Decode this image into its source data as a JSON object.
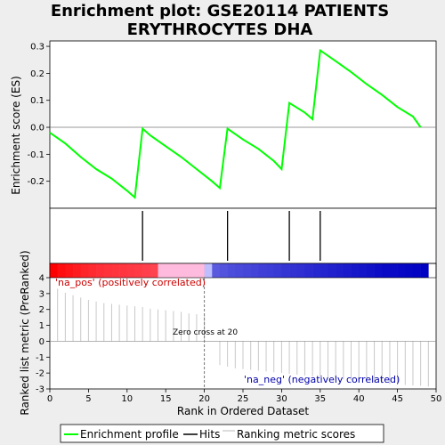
{
  "title_lines": [
    "Enrichment plot: GSE20114 PATIENTS",
    "ERYTHROCYTES DHA"
  ],
  "chart_data": {
    "type": "line",
    "title": "Enrichment plot: GSE20114 PATIENTS ERYTHROCYTES DHA",
    "xlabel": "Rank in Ordered Dataset",
    "xlim": [
      0,
      50
    ],
    "x_ticks": [
      0,
      5,
      10,
      15,
      20,
      25,
      30,
      35,
      40,
      45,
      50
    ],
    "es_panel": {
      "ylabel": "Enrichment score (ES)",
      "ylim": [
        -0.3,
        0.32
      ],
      "y_ticks": [
        -0.2,
        -0.1,
        0.0,
        0.1,
        0.2,
        0.3
      ],
      "series": [
        {
          "name": "Enrichment profile",
          "color": "#00ff00",
          "points": [
            [
              0,
              -0.02
            ],
            [
              2,
              -0.06
            ],
            [
              4,
              -0.11
            ],
            [
              6,
              -0.155
            ],
            [
              8,
              -0.19
            ],
            [
              10,
              -0.235
            ],
            [
              11,
              -0.26
            ],
            [
              12,
              -0.005
            ],
            [
              13,
              -0.03
            ],
            [
              15,
              -0.07
            ],
            [
              17,
              -0.11
            ],
            [
              19,
              -0.155
            ],
            [
              21,
              -0.2
            ],
            [
              22,
              -0.225
            ],
            [
              23,
              -0.005
            ],
            [
              25,
              -0.045
            ],
            [
              27,
              -0.08
            ],
            [
              29,
              -0.125
            ],
            [
              30,
              -0.155
            ],
            [
              31,
              0.09
            ],
            [
              33,
              0.055
            ],
            [
              34,
              0.03
            ],
            [
              35,
              0.285
            ],
            [
              37,
              0.245
            ],
            [
              39,
              0.205
            ],
            [
              41,
              0.16
            ],
            [
              43,
              0.12
            ],
            [
              45,
              0.075
            ],
            [
              47,
              0.04
            ],
            [
              48,
              0.0
            ]
          ]
        }
      ],
      "zero_line": true
    },
    "hits": [
      12,
      23,
      31,
      35
    ],
    "ranking_panel": {
      "ylabel": "Ranked list metric (PreRanked)",
      "ylim": [
        -3,
        4
      ],
      "y_ticks": [
        -3,
        -2,
        -1,
        0,
        1,
        2,
        3,
        4
      ],
      "zero_cross_at": 20,
      "values": [
        3.3,
        3.05,
        2.9,
        2.75,
        2.6,
        2.5,
        2.4,
        2.35,
        2.3,
        2.25,
        2.2,
        2.15,
        2.05,
        2.0,
        1.95,
        1.9,
        1.85,
        1.75,
        1.7,
        1.6,
        0.0,
        -1.5,
        -1.6,
        -1.7,
        -1.75,
        -1.8,
        -1.85,
        -1.9,
        -1.95,
        -2.0,
        -2.05,
        -2.1,
        -2.15,
        -2.2,
        -2.25,
        -2.3,
        -2.35,
        -2.4,
        -2.45,
        -2.5,
        -2.55,
        -2.6,
        -2.65,
        -2.7,
        -2.72,
        -2.75,
        -2.78,
        -2.8,
        -2.85
      ]
    },
    "annotations": {
      "positive": "'na_pos' (positively correlated)",
      "negative": "'na_neg' (negatively correlated)",
      "zero_cross": "Zero cross at 20"
    },
    "legend": {
      "position": "bottom",
      "items": [
        {
          "label": "Enrichment profile",
          "color": "#00ff00",
          "style": "line"
        },
        {
          "label": "Hits",
          "color": "#000000",
          "style": "line"
        },
        {
          "label": "Ranking metric scores",
          "color": "#cccccc",
          "style": "line"
        }
      ]
    },
    "colors": {
      "positive_band": "#ff0000",
      "negative_band": "#0000cc",
      "panel_bg": "#ffffff"
    }
  }
}
